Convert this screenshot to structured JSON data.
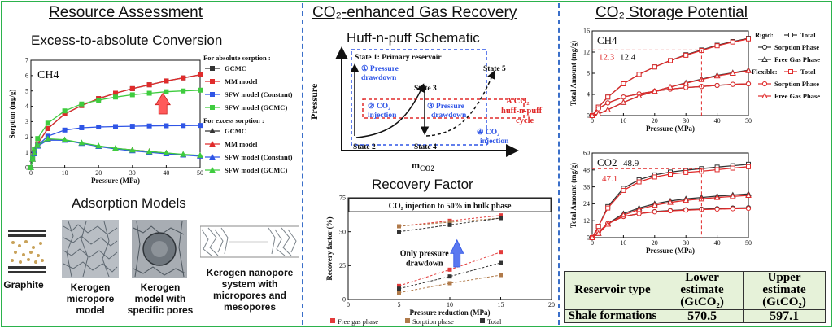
{
  "panels": {
    "resource_assessment": {
      "title": "Resource Assessment",
      "subtitle": "Excess-to-absolute Conversion",
      "adsorption_title": "Adsorption Models",
      "models": [
        {
          "label": "Graphite"
        },
        {
          "label": "Kerogen micropore model"
        },
        {
          "label": "Kerogen model with specific pores"
        },
        {
          "label": "Kerogen nanopore system with micropores and mesopores"
        }
      ]
    },
    "gas_recovery": {
      "title": "CO₂-enhanced Gas Recovery",
      "schematic_title": "Huff-n-puff Schematic",
      "recovery_title": "Recovery Factor"
    },
    "storage": {
      "title": "CO₂ Storage Potential"
    }
  },
  "chart_data": [
    {
      "type": "line",
      "panel": "sorption",
      "gas_label": "CH4",
      "xlabel": "Pressure (MPa)",
      "ylabel": "Sorption (mg/g)",
      "xlim": [
        0,
        50
      ],
      "ylim": [
        0,
        7
      ],
      "xticks": [
        0,
        10,
        20,
        30,
        40,
        50
      ],
      "yticks": [
        0,
        1,
        2,
        3,
        4,
        5,
        6,
        7
      ],
      "legend_group_absolute": "For absolute sorption :",
      "legend_group_excess": "For excess sorption :",
      "series": [
        {
          "name": "GCMC",
          "group": "absolute",
          "color": "#333333",
          "marker": "square",
          "x": [
            0,
            0.5,
            1,
            2,
            5,
            10,
            15,
            20,
            25,
            30,
            35,
            40,
            45,
            50
          ],
          "y": [
            0,
            0.6,
            1.0,
            1.55,
            2.55,
            3.5,
            4.05,
            4.5,
            4.85,
            5.15,
            5.4,
            5.65,
            5.85,
            6.05
          ]
        },
        {
          "name": "MM model",
          "group": "absolute",
          "color": "#e02b2b",
          "marker": "square",
          "x": [
            0,
            0.5,
            1,
            2,
            5,
            10,
            15,
            20,
            25,
            30,
            35,
            40,
            45,
            50
          ],
          "y": [
            0,
            0.6,
            1.0,
            1.55,
            2.55,
            3.5,
            4.05,
            4.5,
            4.85,
            5.15,
            5.4,
            5.65,
            5.85,
            6.05
          ]
        },
        {
          "name": "SFW model (Constant)",
          "group": "absolute",
          "color": "#2f55e6",
          "marker": "square",
          "x": [
            0,
            0.5,
            1,
            2,
            5,
            10,
            15,
            20,
            25,
            30,
            35,
            40,
            45,
            50
          ],
          "y": [
            0,
            0.6,
            0.95,
            1.45,
            2.05,
            2.45,
            2.6,
            2.65,
            2.68,
            2.7,
            2.72,
            2.73,
            2.74,
            2.75
          ]
        },
        {
          "name": "SFW model (GCMC)",
          "group": "absolute",
          "color": "#3fcc3f",
          "marker": "square",
          "x": [
            0,
            0.5,
            1,
            2,
            5,
            10,
            15,
            20,
            25,
            30,
            35,
            40,
            45,
            50
          ],
          "y": [
            0,
            0.7,
            1.2,
            1.9,
            2.9,
            3.7,
            4.15,
            4.4,
            4.6,
            4.75,
            4.85,
            4.95,
            5.0,
            5.05
          ]
        },
        {
          "name": "GCMC",
          "group": "excess",
          "color": "#333333",
          "marker": "triangle",
          "x": [
            0,
            0.5,
            1,
            2,
            5,
            10,
            15,
            20,
            25,
            30,
            35,
            40,
            45,
            50
          ],
          "y": [
            0,
            0.55,
            0.95,
            1.45,
            1.85,
            1.8,
            1.6,
            1.4,
            1.25,
            1.15,
            1.05,
            0.95,
            0.85,
            0.78
          ]
        },
        {
          "name": "MM model",
          "group": "excess",
          "color": "#e02b2b",
          "marker": "triangle",
          "x": [
            0,
            0.5,
            1,
            2,
            5,
            10,
            15,
            20,
            25,
            30,
            35,
            40,
            45,
            50
          ],
          "y": [
            0,
            0.55,
            0.95,
            1.45,
            1.85,
            1.8,
            1.6,
            1.4,
            1.25,
            1.15,
            1.05,
            0.95,
            0.85,
            0.78
          ]
        },
        {
          "name": "SFW model (Constant)",
          "group": "excess",
          "color": "#2f55e6",
          "marker": "triangle",
          "x": [
            0,
            0.5,
            1,
            2,
            5,
            10,
            15,
            20,
            25,
            30,
            35,
            40,
            45,
            50
          ],
          "y": [
            0,
            0.55,
            0.9,
            1.4,
            1.8,
            1.78,
            1.58,
            1.38,
            1.22,
            1.1,
            1.0,
            0.9,
            0.82,
            0.75
          ]
        },
        {
          "name": "SFW model (GCMC)",
          "group": "excess",
          "color": "#3fcc3f",
          "marker": "triangle",
          "x": [
            0,
            0.5,
            1,
            2,
            5,
            10,
            15,
            20,
            25,
            30,
            35,
            40,
            45,
            50
          ],
          "y": [
            0,
            0.55,
            0.95,
            1.45,
            1.88,
            1.82,
            1.62,
            1.42,
            1.27,
            1.15,
            1.05,
            0.96,
            0.87,
            0.8
          ]
        }
      ]
    },
    {
      "type": "line",
      "panel": "huff-n-puff schematic",
      "xlabel": "mCO2",
      "ylabel": "Pressure",
      "states": [
        "State 1: Primary reservoir",
        "State 2",
        "State 3",
        "State 4",
        "State 5"
      ],
      "steps": [
        "① Pressure drawdown",
        "② CO₂ injection",
        "③ Pressure drawdown",
        "④ CO₂ injection"
      ],
      "cycle_label": "A CO₂ huff-n-puff cycle"
    },
    {
      "type": "scatter",
      "panel": "recovery factor",
      "annotation_top": "CO₂ injection to 50% in bulk phase",
      "annotation_bottom": "Only pressure drawdown",
      "xlabel": "Pressure reduction (MPa)",
      "ylabel": "Recovery factor (%)",
      "xlim": [
        0,
        20
      ],
      "ylim": [
        0,
        75
      ],
      "xticks": [
        0,
        5,
        10,
        15,
        20
      ],
      "yticks": [
        0,
        25,
        50,
        75
      ],
      "x": [
        5,
        10,
        15
      ],
      "series": [
        {
          "name": "Free gas phase",
          "color": "#e33b3b",
          "drawdown": [
            10,
            22,
            35
          ],
          "injection": [
            54,
            58,
            62
          ]
        },
        {
          "name": "Sorption phase",
          "color": "#b07a4a",
          "drawdown": [
            5,
            12,
            18
          ],
          "injection": [
            54,
            57,
            60
          ]
        },
        {
          "name": "Total",
          "color": "#333333",
          "drawdown": [
            8,
            17,
            27
          ],
          "injection": [
            50,
            55,
            60
          ]
        }
      ]
    },
    {
      "type": "line",
      "panel": "CH4 storage",
      "gas_label": "CH4",
      "xlabel": "Pressure (MPa)",
      "ylabel": "Total Amount (mg/g)",
      "xlim": [
        0,
        50
      ],
      "ylim": [
        0,
        16
      ],
      "xticks": [
        0,
        10,
        20,
        30,
        40,
        50
      ],
      "yticks": [
        0,
        4,
        8,
        12,
        16
      ],
      "annotations": [
        "12.3",
        "12.4"
      ],
      "reference_pressure": 35,
      "legend_rigid": "Rigid:",
      "legend_flexible": "Flexible:",
      "series": [
        {
          "name": "Total",
          "group": "rigid",
          "color": "#333333",
          "marker": "square",
          "x": [
            0,
            2,
            5,
            10,
            15,
            20,
            25,
            30,
            35,
            40,
            45,
            50
          ],
          "y": [
            0,
            1.6,
            3.5,
            6.0,
            7.8,
            9.2,
            10.4,
            11.5,
            12.4,
            13.3,
            14.0,
            14.6
          ]
        },
        {
          "name": "Sorption Phase",
          "group": "rigid",
          "color": "#333333",
          "marker": "circle",
          "x": [
            0,
            2,
            5,
            10,
            15,
            20,
            25,
            30,
            35,
            40,
            45,
            50
          ],
          "y": [
            0,
            1.3,
            2.4,
            3.5,
            4.1,
            4.6,
            5.0,
            5.3,
            5.5,
            5.7,
            5.9,
            6.0
          ]
        },
        {
          "name": "Free Gas Phase",
          "group": "rigid",
          "color": "#333333",
          "marker": "triangle",
          "x": [
            0,
            2,
            5,
            10,
            15,
            20,
            25,
            30,
            35,
            40,
            45,
            50
          ],
          "y": [
            0,
            0.3,
            1.1,
            2.5,
            3.7,
            4.6,
            5.4,
            6.2,
            6.9,
            7.6,
            8.1,
            8.6
          ]
        },
        {
          "name": "Total",
          "group": "flexible",
          "color": "#e02b2b",
          "marker": "square",
          "x": [
            0,
            2,
            5,
            10,
            15,
            20,
            25,
            30,
            35,
            40,
            45,
            50
          ],
          "y": [
            0,
            1.6,
            3.5,
            6.0,
            7.8,
            9.2,
            10.4,
            11.4,
            12.3,
            13.2,
            13.9,
            14.5
          ]
        },
        {
          "name": "Sorption Phase",
          "group": "flexible",
          "color": "#e02b2b",
          "marker": "circle",
          "x": [
            0,
            2,
            5,
            10,
            15,
            20,
            25,
            30,
            35,
            40,
            45,
            50
          ],
          "y": [
            0,
            1.3,
            2.4,
            3.5,
            4.1,
            4.6,
            5.0,
            5.3,
            5.5,
            5.7,
            5.9,
            6.0
          ]
        },
        {
          "name": "Free Gas Phase",
          "group": "flexible",
          "color": "#e02b2b",
          "marker": "triangle",
          "x": [
            0,
            2,
            5,
            10,
            15,
            20,
            25,
            30,
            35,
            40,
            45,
            50
          ],
          "y": [
            0,
            0.3,
            1.1,
            2.5,
            3.7,
            4.6,
            5.4,
            6.1,
            6.8,
            7.5,
            8.0,
            8.5
          ]
        }
      ]
    },
    {
      "type": "line",
      "panel": "CO2 storage",
      "gas_label": "CO2",
      "xlabel": "Pressure (MPa)",
      "ylabel": "Total Amount (mg/g)",
      "xlim": [
        0,
        50
      ],
      "ylim": [
        0,
        60
      ],
      "xticks": [
        0,
        10,
        20,
        30,
        40,
        50
      ],
      "yticks": [
        0,
        12,
        24,
        36,
        48,
        60
      ],
      "annotations": [
        "48.9",
        "47.1"
      ],
      "reference_pressure": 35,
      "series": [
        {
          "name": "Total",
          "group": "rigid",
          "color": "#333333",
          "marker": "square",
          "x": [
            0,
            2,
            5,
            10,
            15,
            20,
            25,
            30,
            35,
            40,
            45,
            50
          ],
          "y": [
            0,
            8,
            22,
            35,
            41,
            44.5,
            46.5,
            47.8,
            48.9,
            50,
            51,
            52
          ]
        },
        {
          "name": "Sorption Phase",
          "group": "rigid",
          "color": "#333333",
          "marker": "circle",
          "x": [
            0,
            2,
            5,
            10,
            15,
            20,
            25,
            30,
            35,
            40,
            45,
            50
          ],
          "y": [
            0,
            4,
            10,
            15,
            17,
            18.5,
            19.2,
            19.8,
            20.2,
            20.6,
            21,
            21.2
          ]
        },
        {
          "name": "Free Gas Phase",
          "group": "rigid",
          "color": "#333333",
          "marker": "triangle",
          "x": [
            0,
            2,
            5,
            10,
            15,
            20,
            25,
            30,
            35,
            40,
            45,
            50
          ],
          "y": [
            0,
            3,
            10,
            17,
            21,
            24,
            26,
            27.5,
            28.5,
            29.5,
            30.2,
            31
          ]
        },
        {
          "name": "Total",
          "group": "flexible",
          "color": "#e02b2b",
          "marker": "square",
          "x": [
            0,
            2,
            5,
            10,
            15,
            20,
            25,
            30,
            35,
            40,
            45,
            50
          ],
          "y": [
            0,
            8,
            21,
            33.5,
            39.5,
            43,
            45,
            46.2,
            47.1,
            48.2,
            49.3,
            50.3
          ]
        },
        {
          "name": "Sorption Phase",
          "group": "flexible",
          "color": "#e02b2b",
          "marker": "circle",
          "x": [
            0,
            2,
            5,
            10,
            15,
            20,
            25,
            30,
            35,
            40,
            45,
            50
          ],
          "y": [
            0,
            4,
            10,
            15,
            17,
            18.3,
            19,
            19.5,
            19.9,
            20.2,
            20.5,
            20.7
          ]
        },
        {
          "name": "Free Gas Phase",
          "group": "flexible",
          "color": "#e02b2b",
          "marker": "triangle",
          "x": [
            0,
            2,
            5,
            10,
            15,
            20,
            25,
            30,
            35,
            40,
            45,
            50
          ],
          "y": [
            0,
            3,
            9.5,
            16,
            20,
            23,
            25,
            26.5,
            27.5,
            28.5,
            29.2,
            30
          ]
        }
      ]
    },
    {
      "type": "table",
      "panel": "reservoir estimates",
      "headers": [
        "Reservoir type",
        "Lower estimate (GtCO₂)",
        "Upper estimate (GtCO₂)"
      ],
      "rows": [
        [
          "Shale formations",
          "570.5",
          "597.1"
        ]
      ]
    }
  ]
}
